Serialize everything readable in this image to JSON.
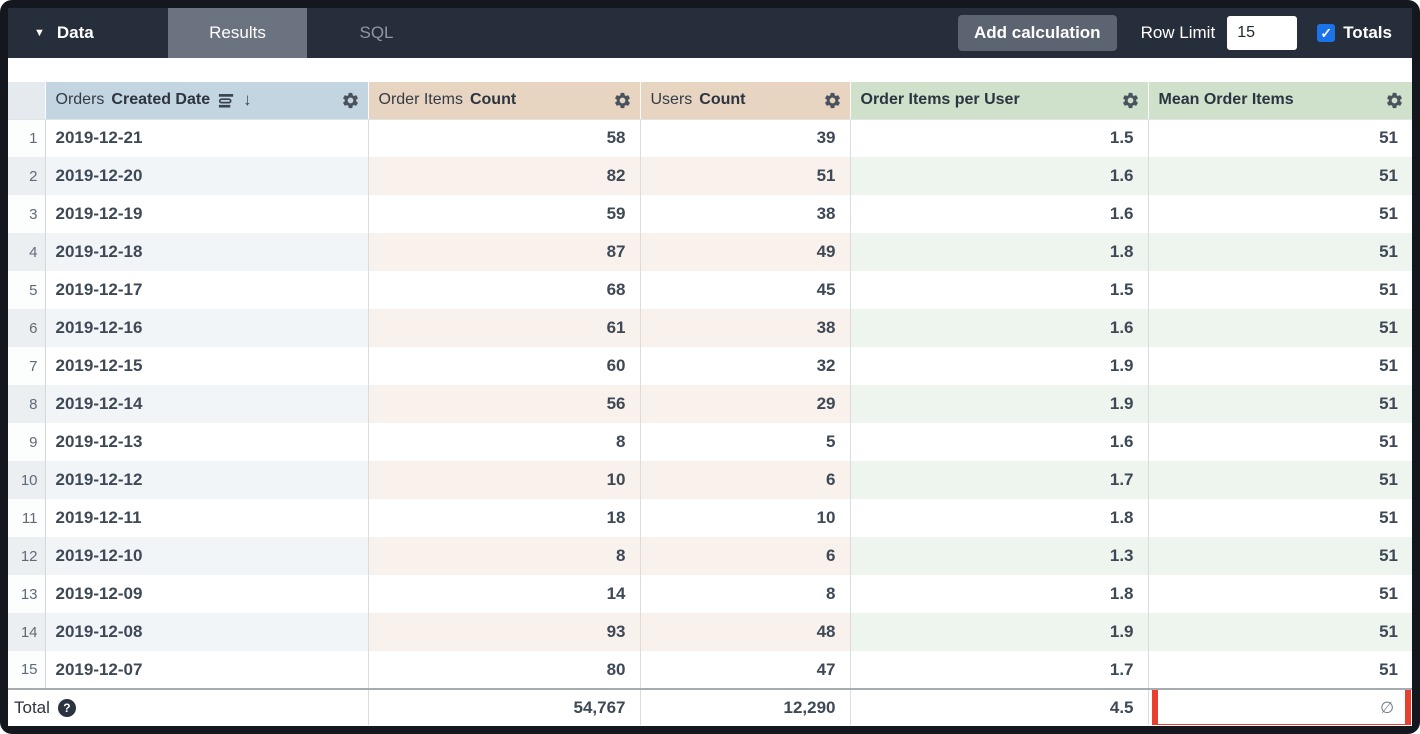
{
  "topbar": {
    "data_label": "Data",
    "caret_glyph": "▼",
    "tabs": [
      {
        "label": "Results",
        "active": true
      },
      {
        "label": "SQL",
        "active": false
      }
    ],
    "add_calculation_label": "Add calculation",
    "row_limit_label": "Row Limit",
    "row_limit_value": "15",
    "totals_label": "Totals",
    "totals_checked": true,
    "check_glyph": "✓",
    "checkbox_color": "#1a73e8",
    "bar_color": "#272e3b"
  },
  "table": {
    "columns": [
      {
        "id": "orders_created_date",
        "label_regular": "Orders",
        "label_bold": "Created Date",
        "type": "dimension",
        "header_bg": "#c4d5e2",
        "sorted": "desc",
        "sort_arrow_glyph": "↓",
        "icons": [
          "wrap-text-icon",
          "sort-desc-arrow-icon",
          "gear-icon"
        ]
      },
      {
        "id": "order_items_count",
        "label_regular": "Order Items",
        "label_bold": "Count",
        "type": "measure",
        "header_bg": "#e8d5c1",
        "icons": [
          "gear-icon"
        ]
      },
      {
        "id": "users_count",
        "label_regular": "Users",
        "label_bold": "Count",
        "type": "measure",
        "header_bg": "#e8d5c1",
        "icons": [
          "gear-icon"
        ]
      },
      {
        "id": "order_items_per_user",
        "label_regular": "",
        "label_bold": "Order Items per User",
        "type": "table_calculation",
        "header_bg": "#cfe1cb",
        "icons": [
          "gear-icon"
        ]
      },
      {
        "id": "mean_order_items",
        "label_regular": "",
        "label_bold": "Mean Order Items",
        "type": "table_calculation",
        "header_bg": "#cfe1cb",
        "icons": [
          "gear-icon"
        ]
      }
    ],
    "rows": [
      {
        "n": "1",
        "date": "2019-12-21",
        "order_items_count": "58",
        "users_count": "39",
        "order_items_per_user": "1.5",
        "mean_order_items": "51"
      },
      {
        "n": "2",
        "date": "2019-12-20",
        "order_items_count": "82",
        "users_count": "51",
        "order_items_per_user": "1.6",
        "mean_order_items": "51"
      },
      {
        "n": "3",
        "date": "2019-12-19",
        "order_items_count": "59",
        "users_count": "38",
        "order_items_per_user": "1.6",
        "mean_order_items": "51"
      },
      {
        "n": "4",
        "date": "2019-12-18",
        "order_items_count": "87",
        "users_count": "49",
        "order_items_per_user": "1.8",
        "mean_order_items": "51"
      },
      {
        "n": "5",
        "date": "2019-12-17",
        "order_items_count": "68",
        "users_count": "45",
        "order_items_per_user": "1.5",
        "mean_order_items": "51"
      },
      {
        "n": "6",
        "date": "2019-12-16",
        "order_items_count": "61",
        "users_count": "38",
        "order_items_per_user": "1.6",
        "mean_order_items": "51"
      },
      {
        "n": "7",
        "date": "2019-12-15",
        "order_items_count": "60",
        "users_count": "32",
        "order_items_per_user": "1.9",
        "mean_order_items": "51"
      },
      {
        "n": "8",
        "date": "2019-12-14",
        "order_items_count": "56",
        "users_count": "29",
        "order_items_per_user": "1.9",
        "mean_order_items": "51"
      },
      {
        "n": "9",
        "date": "2019-12-13",
        "order_items_count": "8",
        "users_count": "5",
        "order_items_per_user": "1.6",
        "mean_order_items": "51"
      },
      {
        "n": "10",
        "date": "2019-12-12",
        "order_items_count": "10",
        "users_count": "6",
        "order_items_per_user": "1.7",
        "mean_order_items": "51"
      },
      {
        "n": "11",
        "date": "2019-12-11",
        "order_items_count": "18",
        "users_count": "10",
        "order_items_per_user": "1.8",
        "mean_order_items": "51"
      },
      {
        "n": "12",
        "date": "2019-12-10",
        "order_items_count": "8",
        "users_count": "6",
        "order_items_per_user": "1.3",
        "mean_order_items": "51"
      },
      {
        "n": "13",
        "date": "2019-12-09",
        "order_items_count": "14",
        "users_count": "8",
        "order_items_per_user": "1.8",
        "mean_order_items": "51"
      },
      {
        "n": "14",
        "date": "2019-12-08",
        "order_items_count": "93",
        "users_count": "48",
        "order_items_per_user": "1.9",
        "mean_order_items": "51"
      },
      {
        "n": "15",
        "date": "2019-12-07",
        "order_items_count": "80",
        "users_count": "47",
        "order_items_per_user": "1.7",
        "mean_order_items": "51"
      }
    ],
    "total": {
      "label": "Total",
      "help_glyph": "?",
      "order_items_count": "54,767",
      "users_count": "12,290",
      "order_items_per_user": "4.5",
      "mean_order_items": "∅"
    }
  },
  "annotations": {
    "highlight_box": {
      "target": "total-mean-order-items-cell",
      "color": "#e8402e"
    }
  }
}
